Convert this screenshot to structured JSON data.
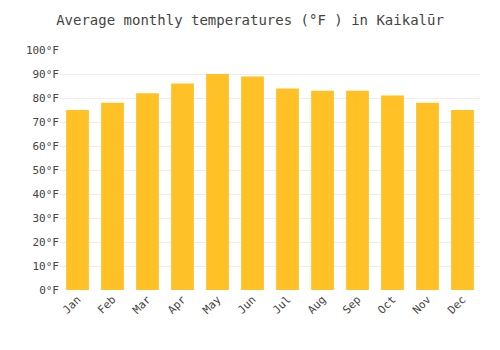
{
  "chart_data": {
    "type": "bar",
    "title": "Average monthly temperatures (°F ) in Kaikalūr",
    "categories": [
      "Jan",
      "Feb",
      "Mar",
      "Apr",
      "May",
      "Jun",
      "Jul",
      "Aug",
      "Sep",
      "Oct",
      "Nov",
      "Dec"
    ],
    "values": [
      75,
      78,
      82,
      86,
      90,
      89,
      84,
      83,
      83,
      81,
      78,
      75
    ],
    "color": "#FFC125",
    "ylim": [
      0,
      100
    ],
    "yticks": [
      {
        "value": 0,
        "label": "0°F"
      },
      {
        "value": 10,
        "label": "10°F"
      },
      {
        "value": 20,
        "label": "20°F"
      },
      {
        "value": 30,
        "label": "30°F"
      },
      {
        "value": 40,
        "label": "40°F"
      },
      {
        "value": 50,
        "label": "50°F"
      },
      {
        "value": 60,
        "label": "60°F"
      },
      {
        "value": 70,
        "label": "70°F"
      },
      {
        "value": 80,
        "label": "80°F"
      },
      {
        "value": 90,
        "label": "90°F"
      },
      {
        "value": 100,
        "label": "100°F"
      }
    ],
    "grid": true
  }
}
